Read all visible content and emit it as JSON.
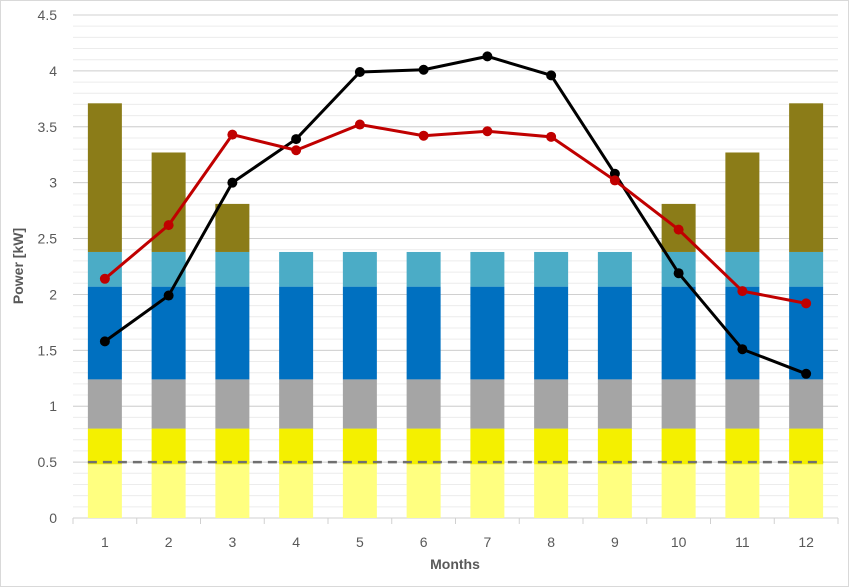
{
  "chart_data": {
    "type": "bar",
    "xlabel": "Months",
    "ylabel": "Power [kW]",
    "ylim": [
      0,
      4.5
    ],
    "yticks": [
      "0",
      "0.5",
      "1",
      "1.5",
      "2",
      "2.5",
      "3",
      "3.5",
      "4",
      "4.5"
    ],
    "categories": [
      "1",
      "2",
      "3",
      "4",
      "5",
      "6",
      "7",
      "8",
      "9",
      "10",
      "11",
      "12"
    ],
    "grid": true,
    "legend": "none",
    "stacked_series": [
      {
        "color": "#ffff80",
        "values": [
          0.48,
          0.48,
          0.48,
          0.48,
          0.48,
          0.48,
          0.48,
          0.48,
          0.48,
          0.48,
          0.48,
          0.48
        ]
      },
      {
        "color": "#f4f000",
        "values": [
          0.32,
          0.32,
          0.32,
          0.32,
          0.32,
          0.32,
          0.32,
          0.32,
          0.32,
          0.32,
          0.32,
          0.32
        ]
      },
      {
        "color": "#a5a5a5",
        "values": [
          0.44,
          0.44,
          0.44,
          0.44,
          0.44,
          0.44,
          0.44,
          0.44,
          0.44,
          0.44,
          0.44,
          0.44
        ]
      },
      {
        "color": "#0070c0",
        "values": [
          0.83,
          0.83,
          0.83,
          0.83,
          0.83,
          0.83,
          0.83,
          0.83,
          0.83,
          0.83,
          0.83,
          0.83
        ]
      },
      {
        "color": "#4bacc6",
        "values": [
          0.31,
          0.31,
          0.31,
          0.31,
          0.31,
          0.31,
          0.31,
          0.31,
          0.31,
          0.31,
          0.31,
          0.31
        ]
      },
      {
        "color": "#8b7c18",
        "values": [
          1.33,
          0.89,
          0.43,
          0,
          0,
          0,
          0,
          0,
          0,
          0.43,
          0.89,
          1.33
        ]
      }
    ],
    "line_series": [
      {
        "color": "#000000",
        "values": [
          1.58,
          1.99,
          3.0,
          3.39,
          3.99,
          4.01,
          4.13,
          3.96,
          3.08,
          2.19,
          1.51,
          1.29
        ]
      },
      {
        "color": "#c00000",
        "values": [
          2.14,
          2.62,
          3.43,
          3.29,
          3.52,
          3.42,
          3.46,
          3.41,
          3.02,
          2.58,
          2.03,
          1.92
        ]
      }
    ],
    "reference_line": {
      "color": "#707070",
      "value": 0.5,
      "style": "dashed"
    }
  }
}
